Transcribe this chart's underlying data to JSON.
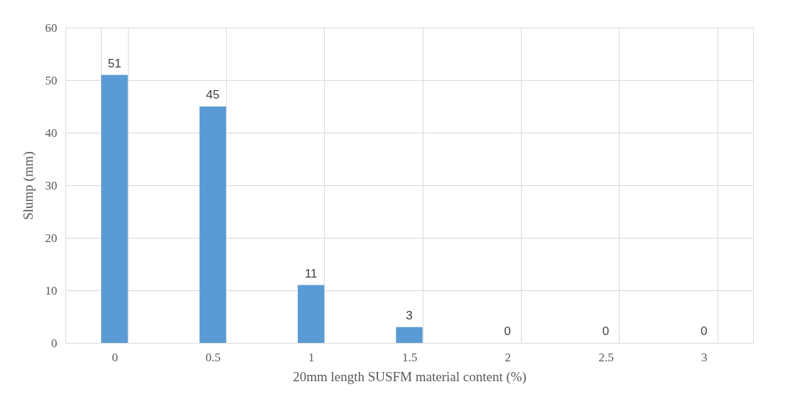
{
  "chart_data": {
    "type": "bar",
    "xlabel": "20mm length SUSFM material content (%)",
    "ylabel": "Slump (mm)",
    "categories": [
      "0",
      "0.5",
      "1",
      "1.5",
      "2",
      "2.5",
      "3"
    ],
    "values": [
      51,
      45,
      11,
      3,
      0,
      0,
      0
    ],
    "color": "#5b9bd5",
    "ylim": [
      0,
      60
    ],
    "yticks": [
      0,
      10,
      20,
      30,
      40,
      50,
      60
    ],
    "grid": true,
    "data_labels": true
  }
}
